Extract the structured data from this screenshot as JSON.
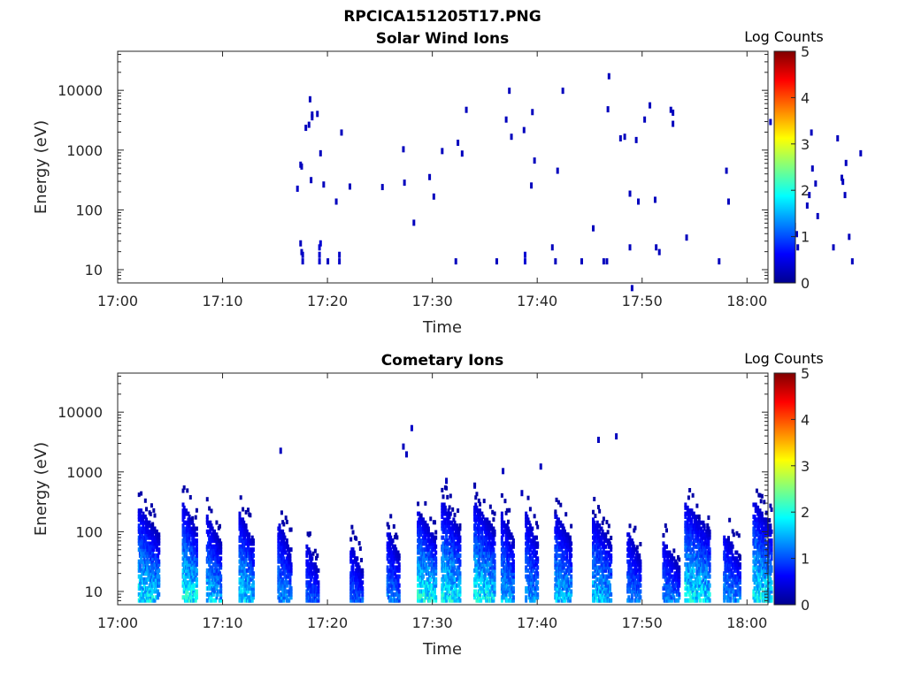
{
  "figure_title": "RPCICA151205T17.PNG",
  "chart_data": [
    {
      "type": "heatmap",
      "title": "Solar Wind Ions",
      "xlabel": "Time",
      "ylabel": "Energy (eV)",
      "yscale": "log",
      "xlim": [
        "17:00",
        "18:02"
      ],
      "ylim": [
        6,
        45000
      ],
      "xticks": [
        "17:00",
        "17:10",
        "17:20",
        "17:30",
        "17:40",
        "17:50",
        "18:00"
      ],
      "yticks": [
        "10",
        "100",
        "1000",
        "10000"
      ],
      "colorbar": {
        "label": "Log Counts",
        "range": [
          0,
          5
        ],
        "ticks": [
          "0",
          "1",
          "2",
          "3",
          "4",
          "5"
        ],
        "colormap": "jet"
      },
      "grid": false,
      "points": [
        [
          17.1,
          230,
          0.35
        ],
        [
          17.4,
          580,
          0.3
        ],
        [
          17.5,
          540,
          0.3
        ],
        [
          17.4,
          28,
          0.3
        ],
        [
          17.5,
          20,
          0.3
        ],
        [
          17.6,
          14,
          0.35
        ],
        [
          17.6,
          18,
          0.35
        ],
        [
          17.9,
          2400,
          0.3
        ],
        [
          18.2,
          2700,
          0.3
        ],
        [
          18.3,
          7200,
          0.3
        ],
        [
          18.5,
          4000,
          0.3
        ],
        [
          18.5,
          3600,
          0.3
        ],
        [
          18.4,
          320,
          0.3
        ],
        [
          19.0,
          4100,
          0.3
        ],
        [
          19.3,
          900,
          0.3
        ],
        [
          19.6,
          270,
          0.3
        ],
        [
          19.2,
          14,
          0.4
        ],
        [
          19.2,
          18,
          0.4
        ],
        [
          19.2,
          24,
          0.4
        ],
        [
          19.3,
          28,
          0.4
        ],
        [
          20.0,
          14,
          0.3
        ],
        [
          20.8,
          140,
          0.3
        ],
        [
          21.1,
          14,
          0.35
        ],
        [
          21.1,
          18,
          0.35
        ],
        [
          21.3,
          2000,
          0.3
        ],
        [
          22.1,
          250,
          0.3
        ],
        [
          25.2,
          245,
          0.3
        ],
        [
          27.2,
          1050,
          0.3
        ],
        [
          27.3,
          290,
          0.3
        ],
        [
          28.2,
          62,
          0.3
        ],
        [
          29.7,
          360,
          0.3
        ],
        [
          30.1,
          170,
          0.3
        ],
        [
          30.9,
          980,
          0.3
        ],
        [
          32.2,
          14,
          0.3
        ],
        [
          32.4,
          1350,
          0.3
        ],
        [
          32.8,
          890,
          0.3
        ],
        [
          33.2,
          4800,
          0.3
        ],
        [
          36.1,
          14,
          0.3
        ],
        [
          37.0,
          3300,
          0.3
        ],
        [
          37.3,
          10000,
          0.3
        ],
        [
          37.5,
          1700,
          0.3
        ],
        [
          38.7,
          2200,
          0.3
        ],
        [
          38.8,
          14,
          0.4
        ],
        [
          38.8,
          18,
          0.4
        ],
        [
          39.5,
          4400,
          0.3
        ],
        [
          39.7,
          680,
          0.3
        ],
        [
          39.4,
          260,
          0.3
        ],
        [
          41.4,
          24,
          0.3
        ],
        [
          41.7,
          14,
          0.3
        ],
        [
          41.9,
          460,
          0.3
        ],
        [
          42.4,
          10000,
          0.3
        ],
        [
          44.2,
          14,
          0.3
        ],
        [
          45.3,
          50,
          0.3
        ],
        [
          46.7,
          4900,
          0.3
        ],
        [
          46.8,
          17500,
          0.3
        ],
        [
          46.3,
          14,
          0.3
        ],
        [
          46.6,
          14,
          0.3
        ],
        [
          47.9,
          1600,
          0.3
        ],
        [
          48.3,
          1700,
          0.3
        ],
        [
          48.8,
          190,
          0.3
        ],
        [
          48.8,
          24,
          0.3
        ],
        [
          49.0,
          5,
          0.3
        ],
        [
          49.4,
          1500,
          0.3
        ],
        [
          49.6,
          140,
          0.3
        ],
        [
          50.2,
          3300,
          0.3
        ],
        [
          50.7,
          5700,
          0.3
        ],
        [
          51.2,
          150,
          0.3
        ],
        [
          51.3,
          24,
          0.3
        ],
        [
          51.6,
          20,
          0.3
        ],
        [
          52.7,
          4800,
          0.3
        ],
        [
          52.9,
          4300,
          0.3
        ],
        [
          52.9,
          2800,
          0.3
        ],
        [
          54.2,
          35,
          0.3
        ],
        [
          57.3,
          14,
          0.3
        ],
        [
          58.0,
          460,
          0.3
        ],
        [
          58.2,
          140,
          0.3
        ],
        [
          62.2,
          3000,
          0.3
        ],
        [
          62.7,
          1450,
          0.3
        ],
        [
          62.9,
          3800,
          0.3
        ],
        [
          63.3,
          7200,
          0.3
        ],
        [
          63.9,
          800,
          0.3
        ],
        [
          64.1,
          95,
          0.3
        ],
        [
          64.5,
          55,
          0.3
        ],
        [
          64.7,
          40,
          0.3
        ],
        [
          64.8,
          24,
          0.3
        ],
        [
          65.7,
          120,
          0.3
        ],
        [
          65.9,
          180,
          0.3
        ],
        [
          66.1,
          2000,
          0.3
        ],
        [
          66.2,
          500,
          0.3
        ],
        [
          66.5,
          280,
          0.3
        ],
        [
          66.7,
          80,
          0.3
        ],
        [
          68.2,
          24,
          0.3
        ],
        [
          68.6,
          1600,
          0.3
        ],
        [
          69.0,
          350,
          0.3
        ],
        [
          69.1,
          300,
          0.3
        ],
        [
          69.3,
          180,
          0.3
        ],
        [
          69.4,
          620,
          0.3
        ],
        [
          69.7,
          36,
          0.3
        ],
        [
          70.0,
          14,
          0.3
        ],
        [
          70.8,
          900,
          0.3
        ]
      ]
    },
    {
      "type": "heatmap",
      "title": "Cometary Ions",
      "xlabel": "Time",
      "ylabel": "Energy (eV)",
      "yscale": "log",
      "xlim": [
        "17:00",
        "18:02"
      ],
      "ylim": [
        6,
        45000
      ],
      "xticks": [
        "17:00",
        "17:10",
        "17:20",
        "17:30",
        "17:40",
        "17:50",
        "18:00"
      ],
      "yticks": [
        "10",
        "100",
        "1000",
        "10000"
      ],
      "colorbar": {
        "label": "Log Counts",
        "range": [
          0,
          5
        ],
        "ticks": [
          "0",
          "1",
          "2",
          "3",
          "4",
          "5"
        ],
        "colormap": "jet"
      },
      "grid": false,
      "points": [
        [
          28,
          5500,
          0.35
        ],
        [
          27.5,
          2000,
          0.3
        ],
        [
          27.2,
          2700,
          0.3
        ],
        [
          15.5,
          2300,
          0.3
        ],
        [
          45.8,
          3500,
          0.3
        ],
        [
          47.5,
          4000,
          0.3
        ],
        [
          36.7,
          1050,
          0.3
        ],
        [
          40.3,
          1250,
          0.3
        ],
        [
          34,
          600,
          0.3
        ],
        [
          38.5,
          450,
          0.3
        ],
        [
          31.3,
          720,
          0.3
        ]
      ],
      "bursts": [
        {
          "t": 2.0,
          "low": 10,
          "top": 250,
          "width": 2.0,
          "intensity": 1.4
        },
        {
          "t": 6.2,
          "low": 10,
          "top": 300,
          "width": 1.4,
          "intensity": 1.6
        },
        {
          "t": 8.5,
          "low": 10,
          "top": 180,
          "width": 1.4,
          "intensity": 1.2
        },
        {
          "t": 11.6,
          "low": 10,
          "top": 200,
          "width": 1.4,
          "intensity": 1.3
        },
        {
          "t": 15.3,
          "low": 10,
          "top": 140,
          "width": 1.3,
          "intensity": 0.9
        },
        {
          "t": 18.0,
          "low": 10,
          "top": 60,
          "width": 1.2,
          "intensity": 0.6
        },
        {
          "t": 22.2,
          "low": 10,
          "top": 60,
          "width": 1.2,
          "intensity": 0.6
        },
        {
          "t": 25.7,
          "low": 10,
          "top": 110,
          "width": 1.2,
          "intensity": 0.8
        },
        {
          "t": 28.6,
          "low": 10,
          "top": 220,
          "width": 1.8,
          "intensity": 1.6
        },
        {
          "t": 30.9,
          "low": 10,
          "top": 320,
          "width": 1.8,
          "intensity": 1.5
        },
        {
          "t": 34.0,
          "low": 10,
          "top": 300,
          "width": 2.0,
          "intensity": 1.5
        },
        {
          "t": 36.6,
          "low": 10,
          "top": 200,
          "width": 1.2,
          "intensity": 1.1
        },
        {
          "t": 38.9,
          "low": 10,
          "top": 200,
          "width": 1.2,
          "intensity": 1.0
        },
        {
          "t": 41.7,
          "low": 10,
          "top": 200,
          "width": 1.6,
          "intensity": 1.2
        },
        {
          "t": 45.3,
          "low": 10,
          "top": 180,
          "width": 1.8,
          "intensity": 1.2
        },
        {
          "t": 48.6,
          "low": 10,
          "top": 100,
          "width": 1.3,
          "intensity": 0.8
        },
        {
          "t": 52.0,
          "low": 10,
          "top": 70,
          "width": 1.6,
          "intensity": 0.8
        },
        {
          "t": 54.1,
          "low": 10,
          "top": 300,
          "width": 2.4,
          "intensity": 1.5
        },
        {
          "t": 57.8,
          "low": 10,
          "top": 100,
          "width": 1.6,
          "intensity": 0.9
        },
        {
          "t": 60.6,
          "low": 10,
          "top": 330,
          "width": 1.8,
          "intensity": 1.5
        }
      ]
    }
  ]
}
